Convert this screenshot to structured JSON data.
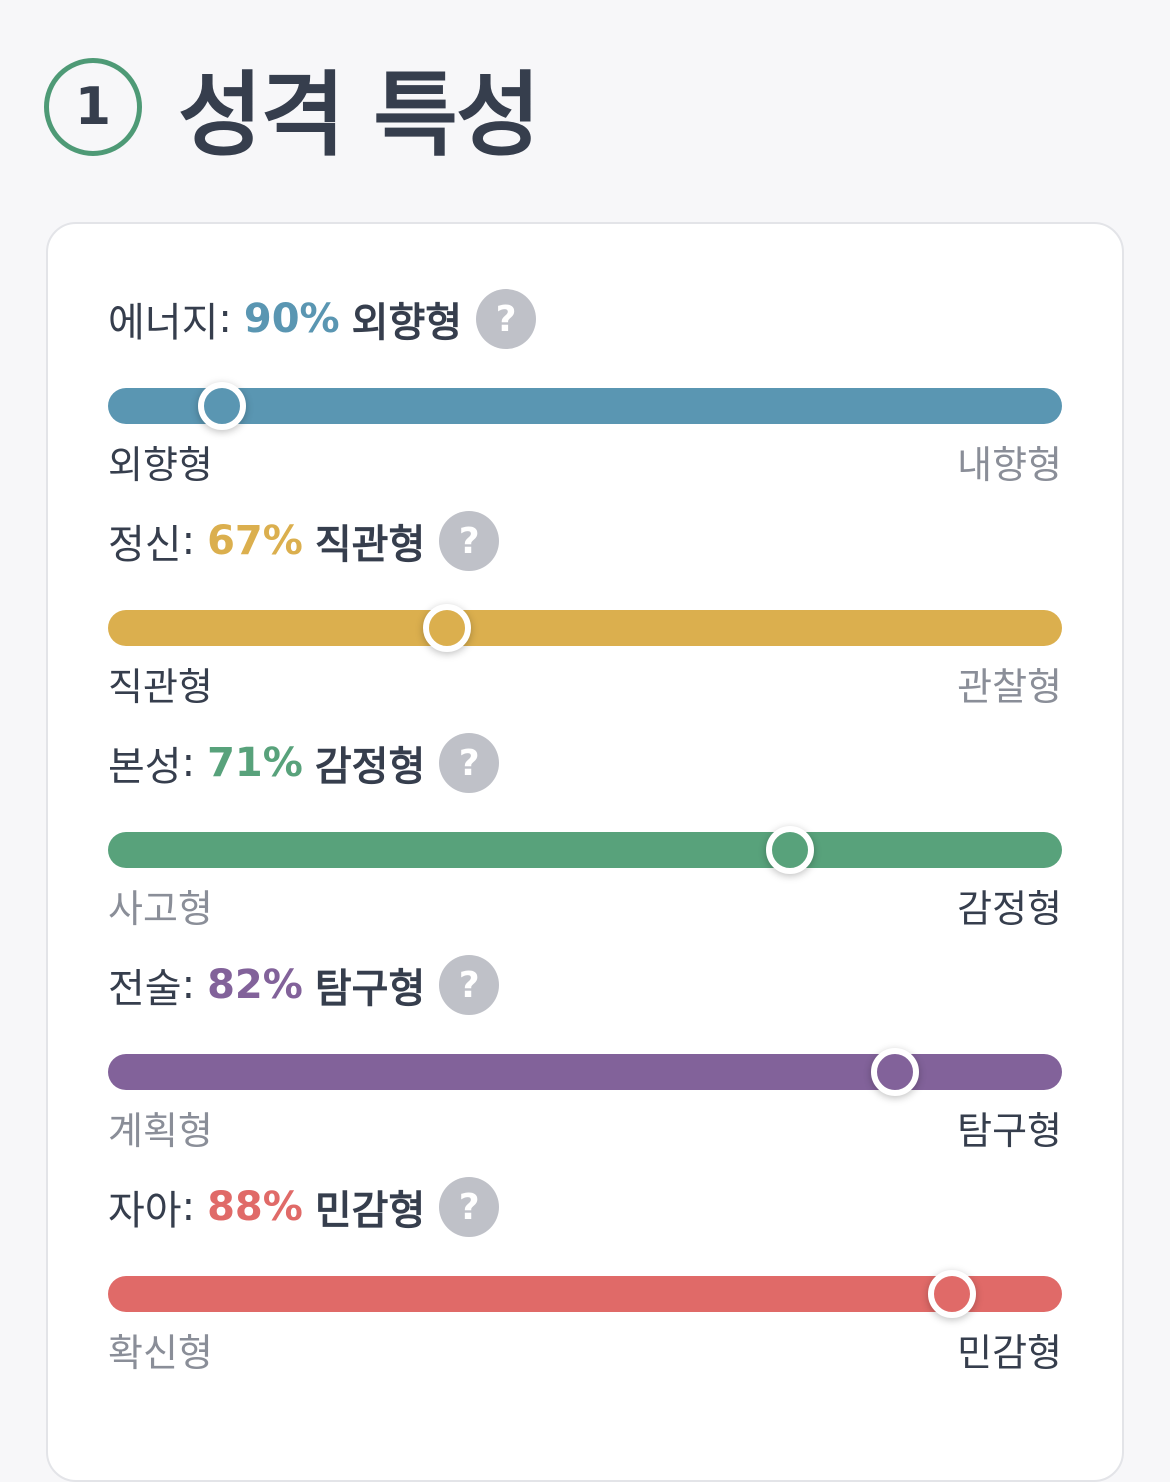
{
  "section": {
    "number": "1",
    "title": "성격 특성"
  },
  "traits": [
    {
      "name": "에너지",
      "colon": ":",
      "percent": "90%",
      "result": "외향형",
      "help": "?",
      "left": "외향형",
      "right": "내향형",
      "left_active": true,
      "position": 0.12,
      "color": "#5a96b2"
    },
    {
      "name": "정신",
      "colon": ":",
      "percent": "67%",
      "result": "직관형",
      "help": "?",
      "left": "직관형",
      "right": "관찰형",
      "left_active": true,
      "position": 0.355,
      "color": "#dbaf4e"
    },
    {
      "name": "본성",
      "colon": ":",
      "percent": "71%",
      "result": "감정형",
      "help": "?",
      "left": "사고형",
      "right": "감정형",
      "left_active": false,
      "position": 0.715,
      "color": "#58a27b"
    },
    {
      "name": "전술",
      "colon": ":",
      "percent": "82%",
      "result": "탐구형",
      "help": "?",
      "left": "계획형",
      "right": "탐구형",
      "left_active": false,
      "position": 0.825,
      "color": "#82629a"
    },
    {
      "name": "자아",
      "colon": ":",
      "percent": "88%",
      "result": "민감형",
      "help": "?",
      "left": "확신형",
      "right": "민감형",
      "left_active": false,
      "position": 0.885,
      "color": "#e06a68"
    }
  ]
}
